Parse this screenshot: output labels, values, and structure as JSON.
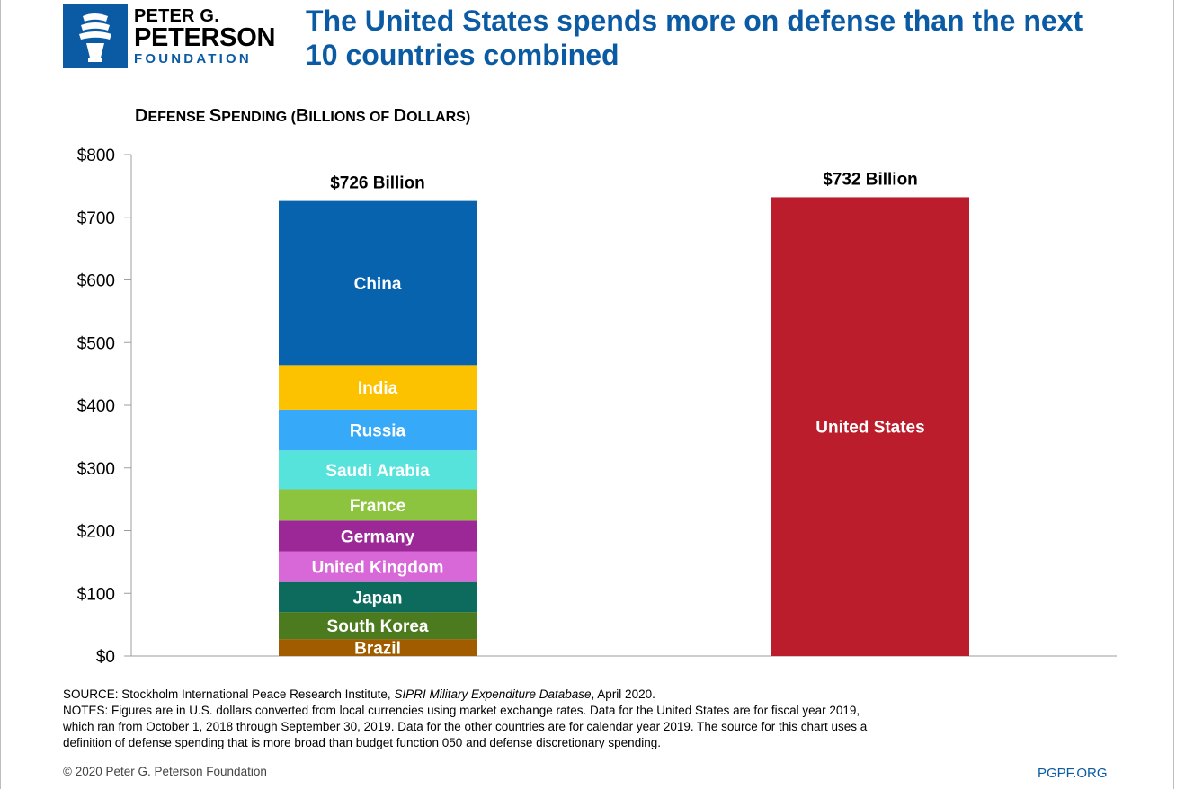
{
  "logo": {
    "line1": "PETER G.",
    "line2": "PETERSON",
    "line3": "FOUNDATION"
  },
  "headline": "The United States spends more on defense than the next 10 countries combined",
  "chart_title": {
    "part1_big": "D",
    "part1_small": "EFENSE ",
    "part2_big": "S",
    "part2_small": "PENDING (",
    "part3_big": "B",
    "part3_small": "ILLIONS OF ",
    "part4_big": "D",
    "part4_small": "OLLARS)"
  },
  "chart_data": {
    "type": "bar",
    "title": "Defense Spending (Billions of Dollars)",
    "ylim": [
      0,
      800
    ],
    "y_ticks": [
      0,
      100,
      200,
      300,
      400,
      500,
      600,
      700,
      800
    ],
    "y_tick_labels": [
      "$0",
      "$100",
      "$200",
      "$300",
      "$400",
      "$500",
      "$600",
      "$700",
      "$800"
    ],
    "grid": false,
    "stacked_bar": {
      "total_label": "$726 Billion",
      "total": 726,
      "segments": [
        {
          "name": "Brazil",
          "value": 27,
          "color": "#a15c00"
        },
        {
          "name": "South Korea",
          "value": 43,
          "color": "#4c7a1e"
        },
        {
          "name": "Japan",
          "value": 48,
          "color": "#0d6b5e"
        },
        {
          "name": "United Kingdom",
          "value": 49,
          "color": "#d868d8"
        },
        {
          "name": "Germany",
          "value": 49,
          "color": "#9b2896"
        },
        {
          "name": "France",
          "value": 50,
          "color": "#8cc43f"
        },
        {
          "name": "Saudi Arabia",
          "value": 62,
          "color": "#56e3db"
        },
        {
          "name": "Russia",
          "value": 65,
          "color": "#36aaf8"
        },
        {
          "name": "India",
          "value": 71,
          "color": "#fcc200"
        },
        {
          "name": "China",
          "value": 262,
          "color": "#0763ad"
        }
      ]
    },
    "single_bar": {
      "name": "United States",
      "value": 732,
      "total_label": "$732 Billion",
      "color": "#bc1d2c"
    }
  },
  "footer": {
    "source_prefix": "SOURCE: Stockholm International Peace Research Institute, ",
    "source_italic": "SIPRI Military Expenditure Database",
    "source_suffix": ", April 2020.",
    "notes_line1": "NOTES: Figures are in U.S. dollars converted from local currencies using market exchange rates. Data for the United States are for fiscal year 2019,",
    "notes_line2": "which ran from October 1, 2018 through September 30, 2019. Data for the other countries are for calendar year 2019. The source for this chart uses a",
    "notes_line3": "definition of defense spending that is more broad than budget function 050 and defense discretionary spending.",
    "copyright": "© 2020 Peter G. Peterson Foundation",
    "site": "PGPF.ORG"
  }
}
